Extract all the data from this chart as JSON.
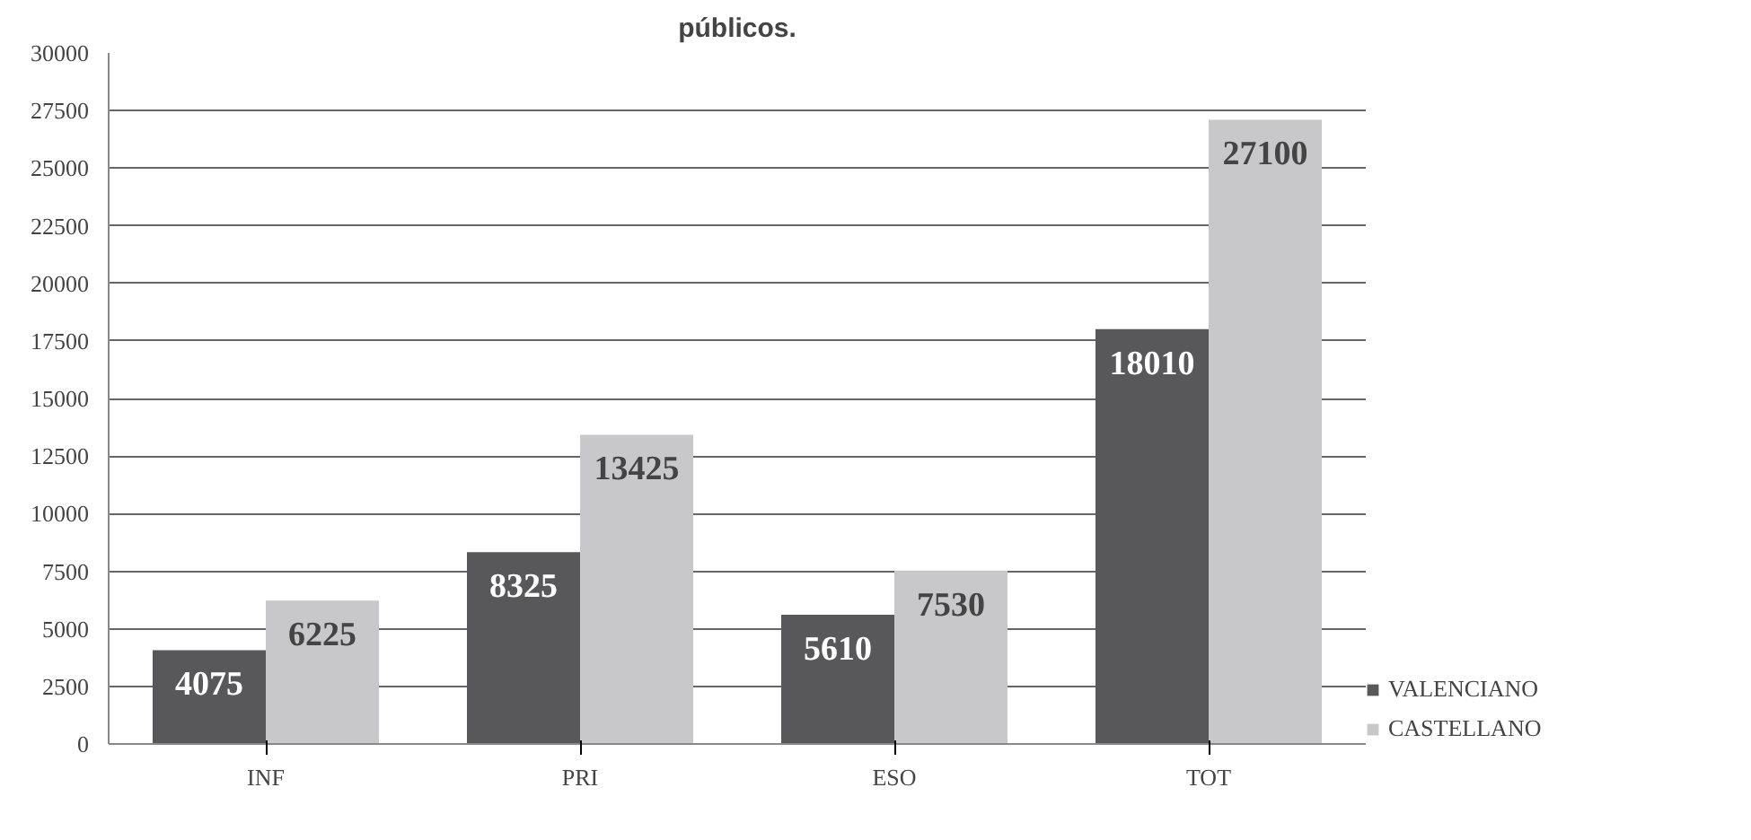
{
  "chart_data": {
    "type": "bar",
    "title": "públicos.",
    "categories": [
      "INF",
      "PRI",
      "ESO",
      "TOT"
    ],
    "series": [
      {
        "name": "VALENCIANO",
        "color": "#58585a",
        "values": [
          4075,
          8325,
          5610,
          18010
        ]
      },
      {
        "name": "CASTELLANO",
        "color": "#c8c8ca",
        "values": [
          6225,
          13425,
          7530,
          27100
        ]
      }
    ],
    "ylim": [
      0,
      30000
    ],
    "yticks": [
      0,
      2500,
      5000,
      7500,
      10000,
      12500,
      15000,
      17500,
      20000,
      22500,
      25000,
      27500,
      30000
    ],
    "grid": "y",
    "legend": "bottom right",
    "data_labels": true
  }
}
